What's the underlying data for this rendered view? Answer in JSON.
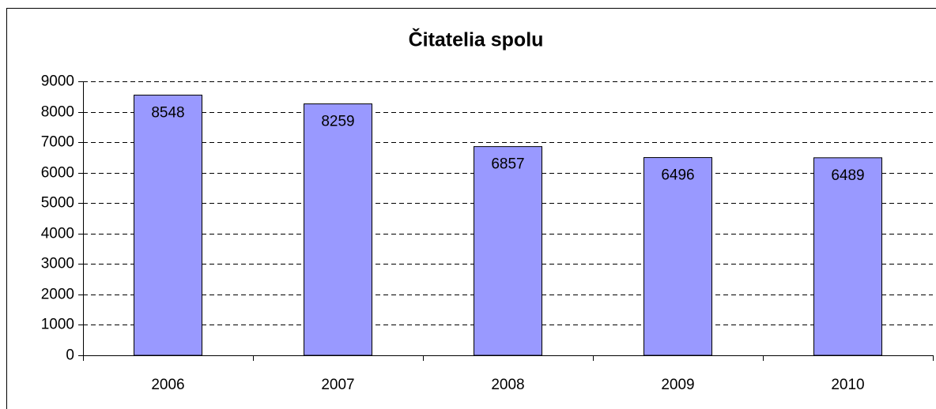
{
  "chart_data": {
    "type": "bar",
    "title": "Čitatelia spolu",
    "categories": [
      "2006",
      "2007",
      "2008",
      "2009",
      "2010"
    ],
    "values": [
      8548,
      8259,
      6857,
      6496,
      6489
    ],
    "color": "#9999ff",
    "ylim": [
      0,
      9000
    ],
    "yticks": [
      0,
      1000,
      2000,
      3000,
      4000,
      5000,
      6000,
      7000,
      8000,
      9000
    ],
    "grid": true
  }
}
